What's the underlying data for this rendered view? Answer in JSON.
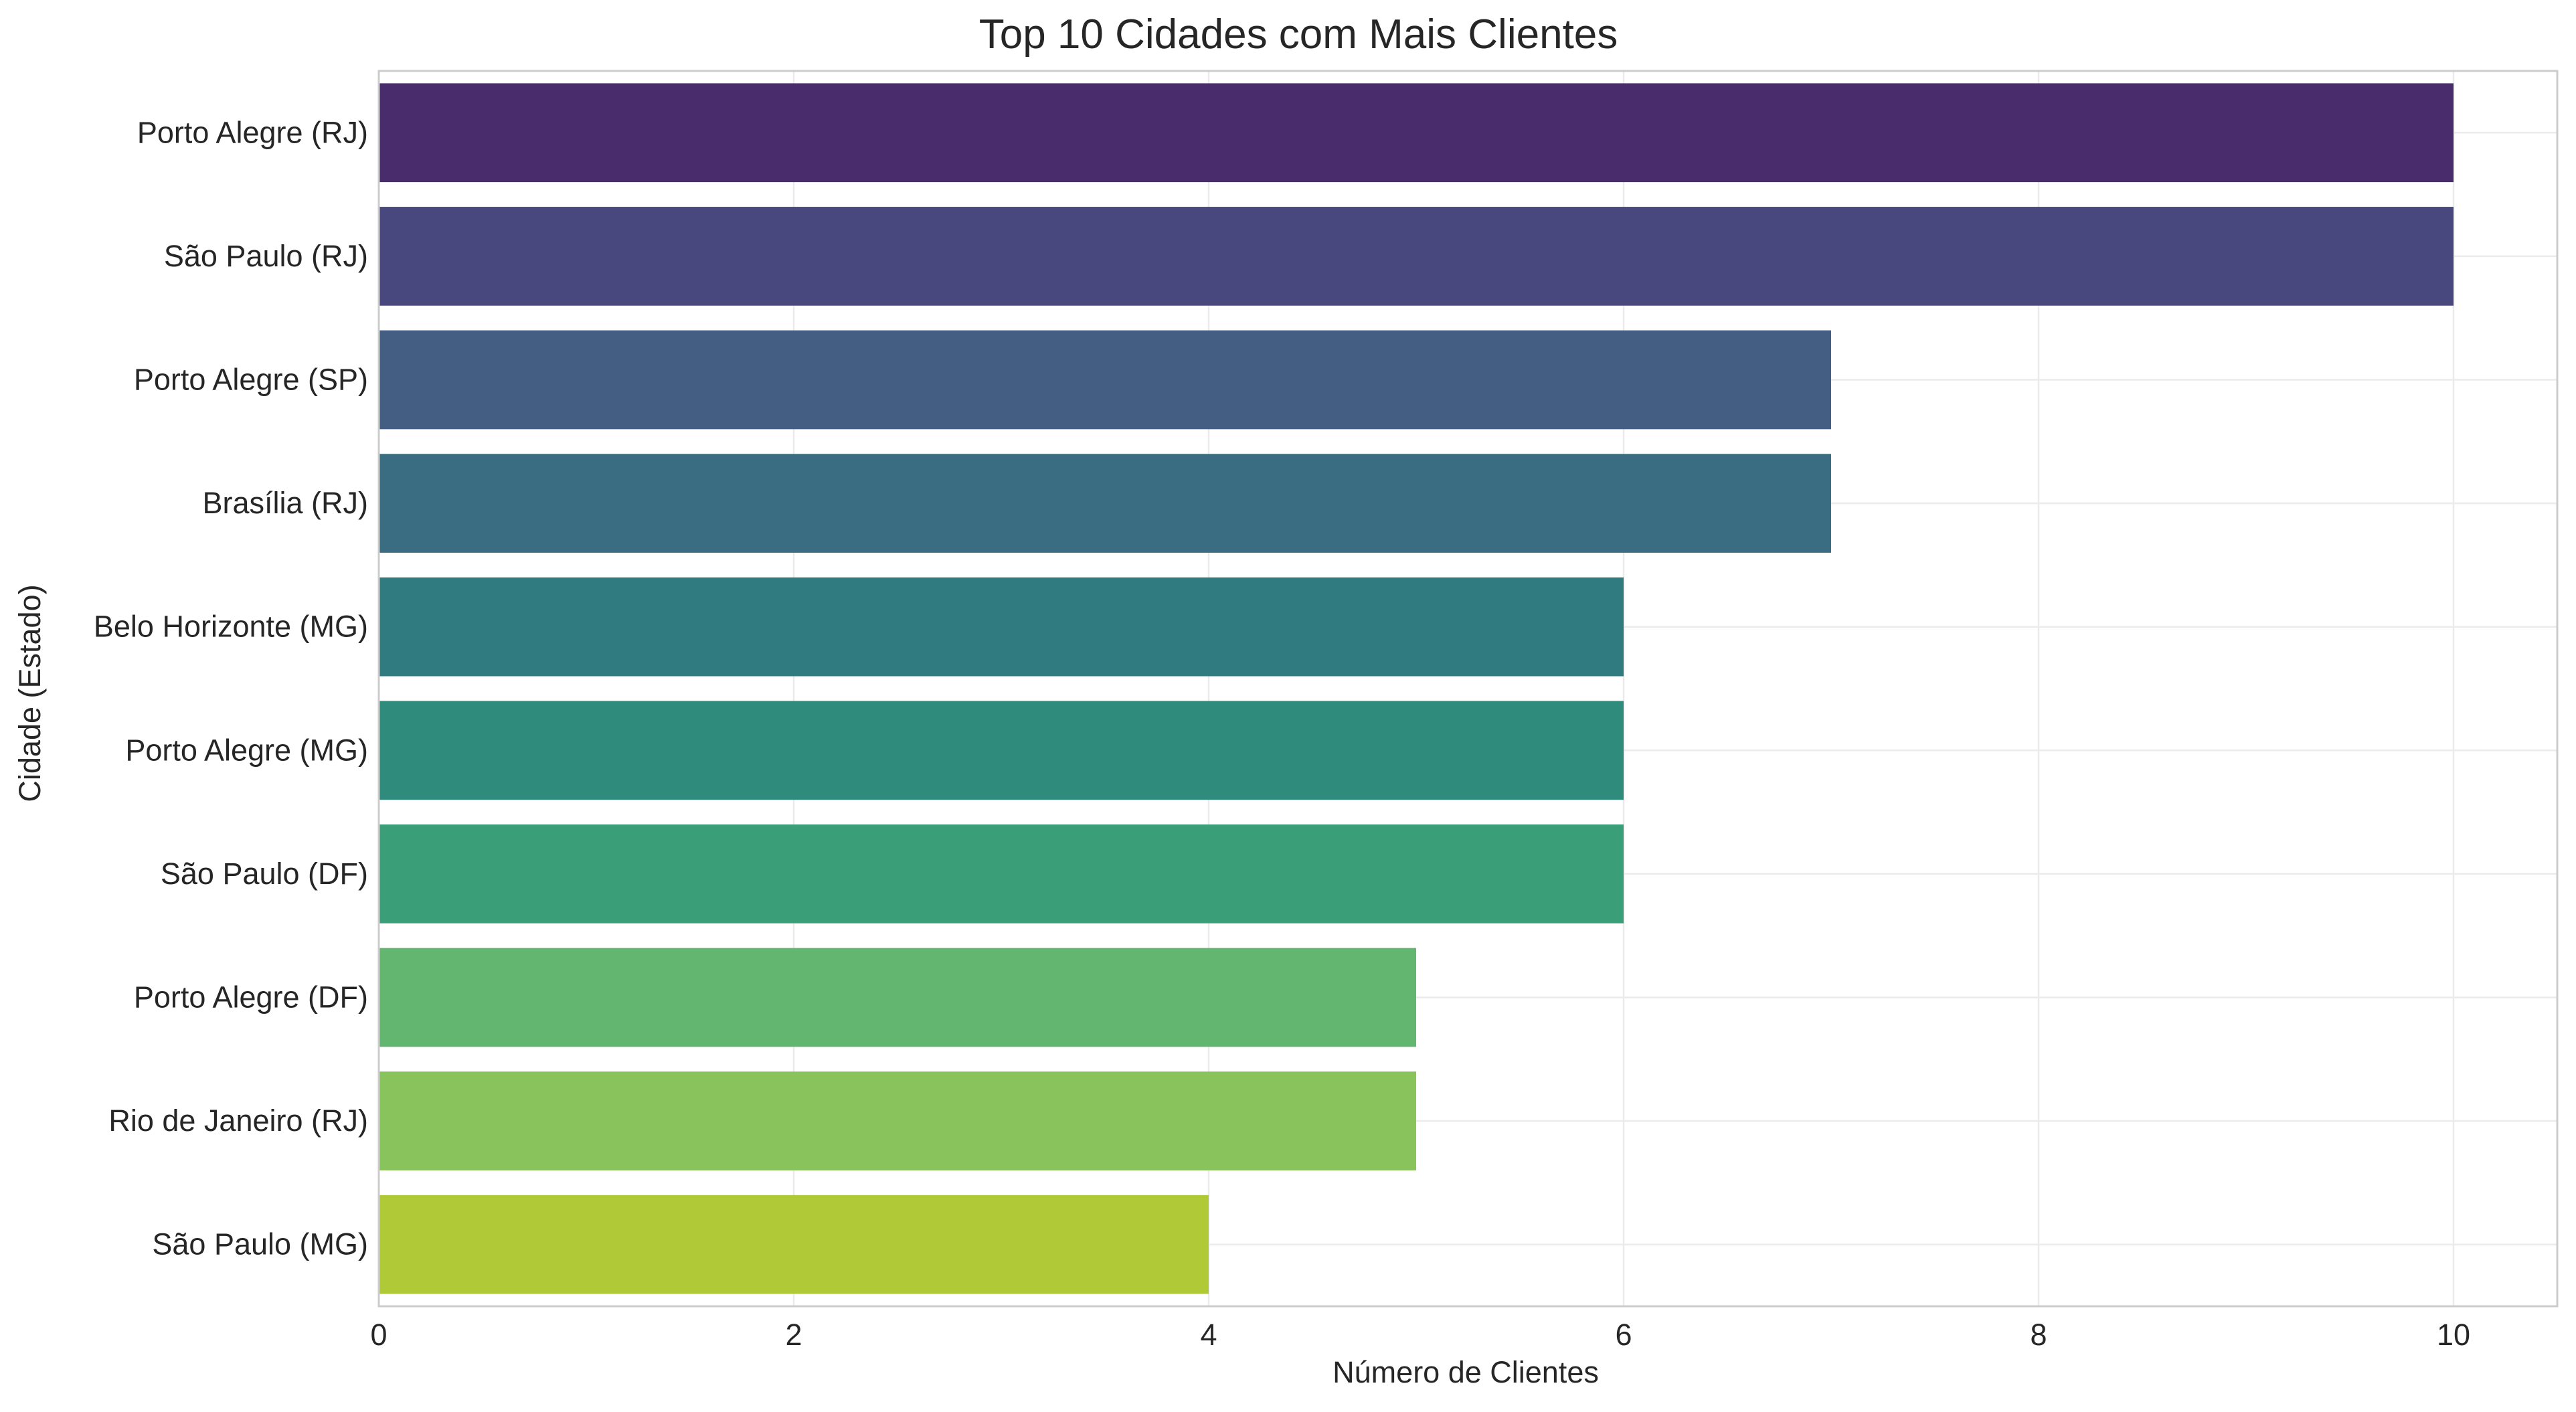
{
  "chart_data": {
    "type": "bar",
    "orientation": "horizontal",
    "title": "Top 10 Cidades com Mais Clientes",
    "xlabel": "Número de Clientes",
    "ylabel": "Cidade (Estado)",
    "categories": [
      "Porto Alegre (RJ)",
      "São Paulo (RJ)",
      "Porto Alegre (SP)",
      "Brasília (RJ)",
      "Belo Horizonte (MG)",
      "Porto Alegre (MG)",
      "São Paulo (DF)",
      "Porto Alegre (DF)",
      "Rio de Janeiro (RJ)",
      "São Paulo (MG)"
    ],
    "values": [
      10,
      10,
      7,
      7,
      6,
      6,
      6,
      5,
      5,
      4
    ],
    "colors": [
      "#482c6b",
      "#48477e",
      "#435d83",
      "#3a6c82",
      "#307b80",
      "#2f8b7c",
      "#3a9e78",
      "#63b66f",
      "#89c35b",
      "#b0c936"
    ],
    "xlim": [
      0,
      10.5
    ],
    "xticks": [
      0,
      2,
      4,
      6,
      8,
      10
    ],
    "xtick_labels": [
      "0",
      "2",
      "4",
      "6",
      "8",
      "10"
    ],
    "grid": true
  }
}
